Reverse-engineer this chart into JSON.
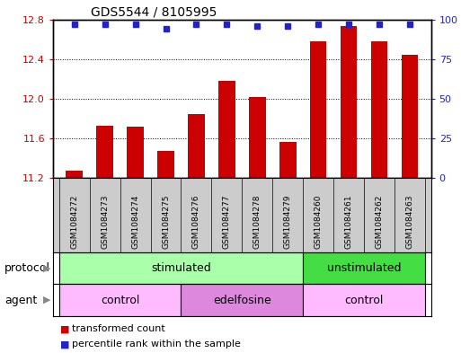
{
  "title": "GDS5544 / 8105995",
  "samples": [
    "GSM1084272",
    "GSM1084273",
    "GSM1084274",
    "GSM1084275",
    "GSM1084276",
    "GSM1084277",
    "GSM1084278",
    "GSM1084279",
    "GSM1084260",
    "GSM1084261",
    "GSM1084262",
    "GSM1084263"
  ],
  "transformed_count": [
    11.28,
    11.73,
    11.72,
    11.48,
    11.85,
    12.18,
    12.02,
    11.57,
    12.58,
    12.73,
    12.58,
    12.44
  ],
  "percentile_rank": [
    97,
    97,
    97,
    94,
    97,
    97,
    96,
    96,
    97,
    97,
    97,
    97
  ],
  "ylim_left": [
    11.2,
    12.8
  ],
  "ylim_right": [
    0,
    100
  ],
  "yticks_left": [
    11.2,
    11.6,
    12.0,
    12.4,
    12.8
  ],
  "yticks_right": [
    0,
    25,
    50,
    75,
    100
  ],
  "bar_color": "#cc0000",
  "dot_color": "#2222cc",
  "bar_width": 0.55,
  "protocol_groups": [
    {
      "label": "stimulated",
      "start": 0,
      "end": 7,
      "color": "#aaffaa"
    },
    {
      "label": "unstimulated",
      "start": 8,
      "end": 11,
      "color": "#44dd44"
    }
  ],
  "agent_groups": [
    {
      "label": "control",
      "start": 0,
      "end": 3,
      "color": "#ffbbff"
    },
    {
      "label": "edelfosine",
      "start": 4,
      "end": 7,
      "color": "#dd88dd"
    },
    {
      "label": "control",
      "start": 8,
      "end": 11,
      "color": "#ffbbff"
    }
  ],
  "legend_bar_label": "transformed count",
  "legend_dot_label": "percentile rank within the sample",
  "tick_color_left": "#cc0000",
  "tick_color_right": "#2222cc",
  "background_color": "#ffffff",
  "title_fontsize": 10,
  "tick_fontsize": 8,
  "sample_fontsize": 6.5,
  "row_label_fontsize": 9,
  "group_label_fontsize": 9,
  "legend_fontsize": 8
}
